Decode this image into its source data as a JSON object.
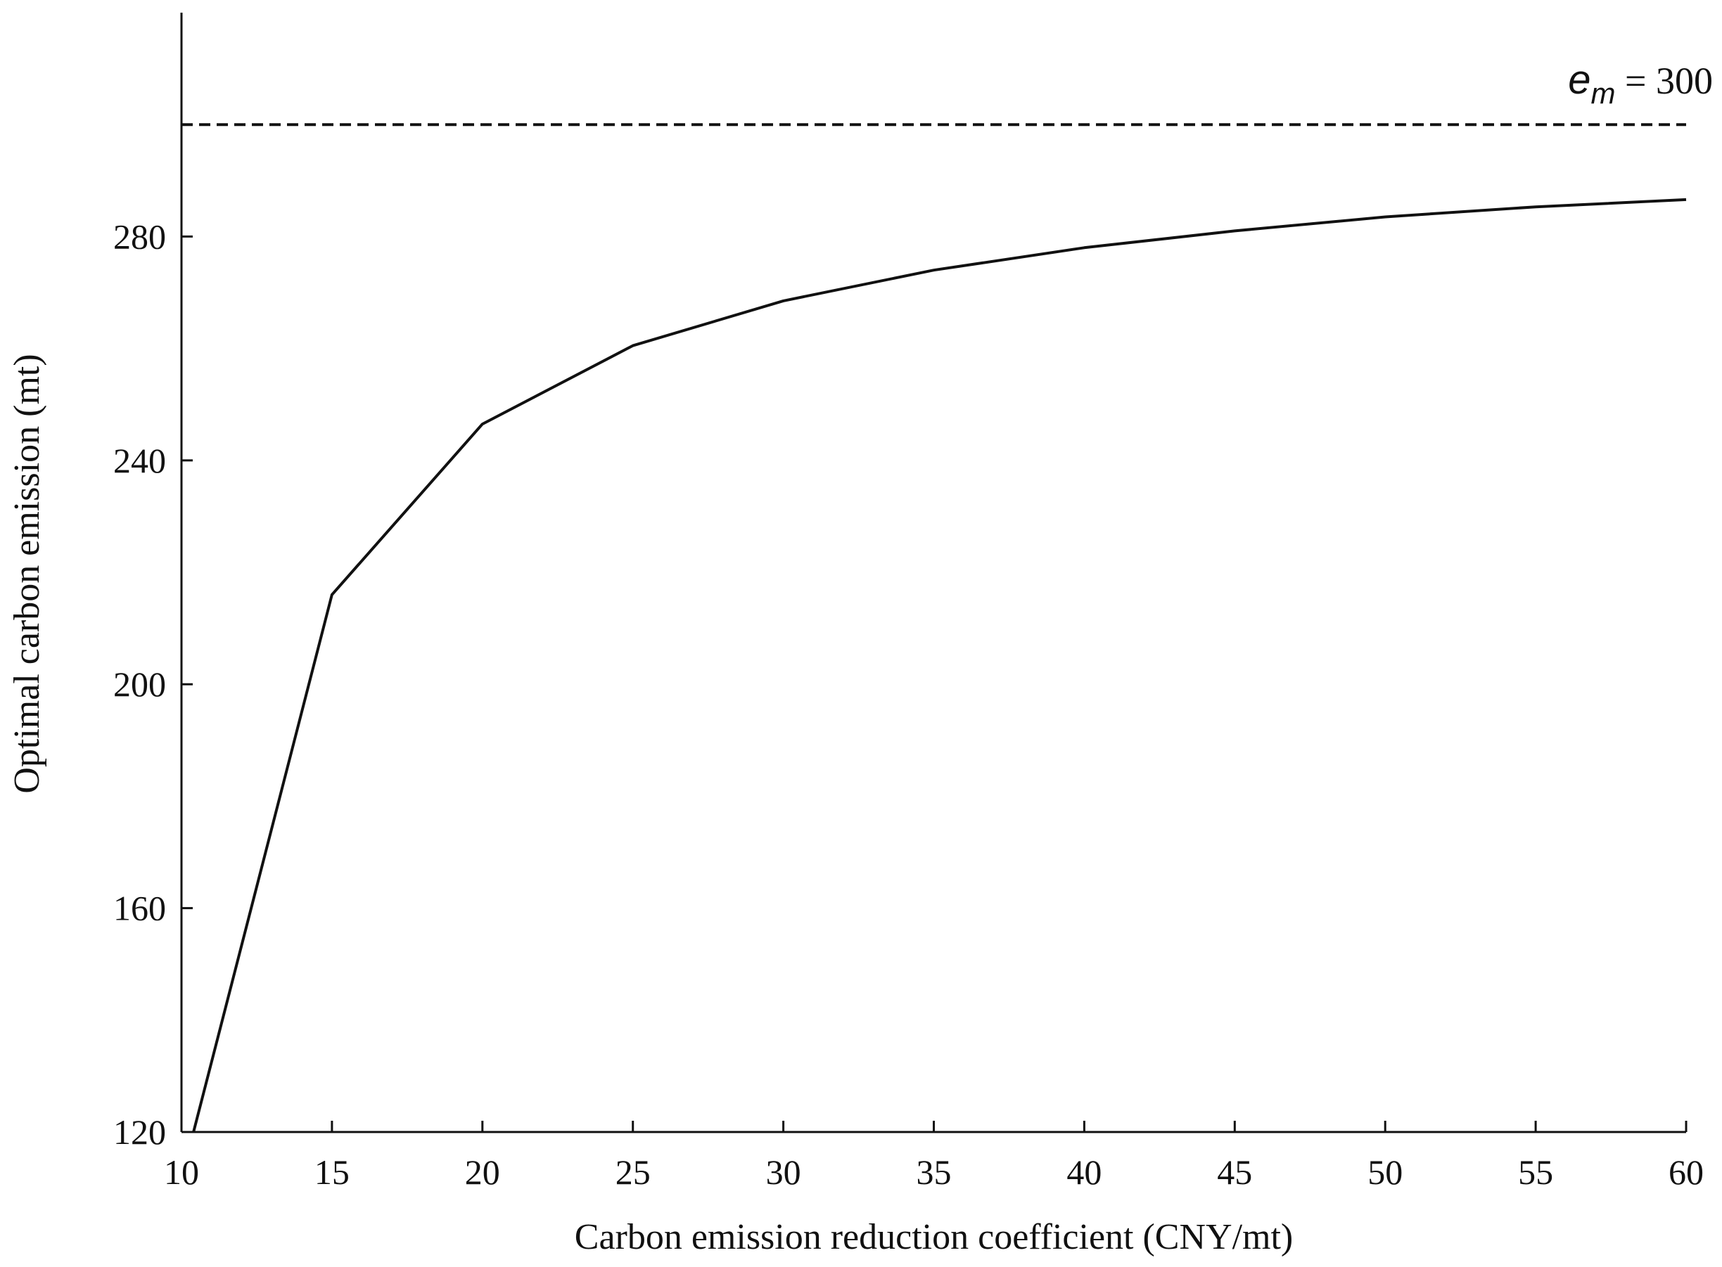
{
  "chart_data": {
    "type": "line",
    "xlabel": "Carbon emission reduction coefficient (CNY/mt)",
    "ylabel": "Optimal carbon emission (mt)",
    "xlim": [
      10,
      60
    ],
    "ylim": [
      120,
      320
    ],
    "xticks": [
      10,
      15,
      20,
      25,
      30,
      35,
      40,
      45,
      50,
      55,
      60
    ],
    "yticks": [
      120,
      160,
      200,
      240,
      280
    ],
    "grid": false,
    "series": [
      {
        "x": [
          10.4,
          15,
          20,
          25,
          30,
          35,
          40,
          45,
          50,
          55,
          60
        ],
        "y": [
          120,
          216,
          246.5,
          260.5,
          268.5,
          274,
          278,
          281,
          283.5,
          285.3,
          286.6
        ],
        "color": "#111111",
        "style": "solid"
      }
    ],
    "reference_lines": [
      {
        "orientation": "horizontal",
        "y": 300,
        "style": "dashed",
        "color": "#111111",
        "label_var": "e",
        "label_sub": "m",
        "label_rest": " = 300"
      }
    ]
  }
}
